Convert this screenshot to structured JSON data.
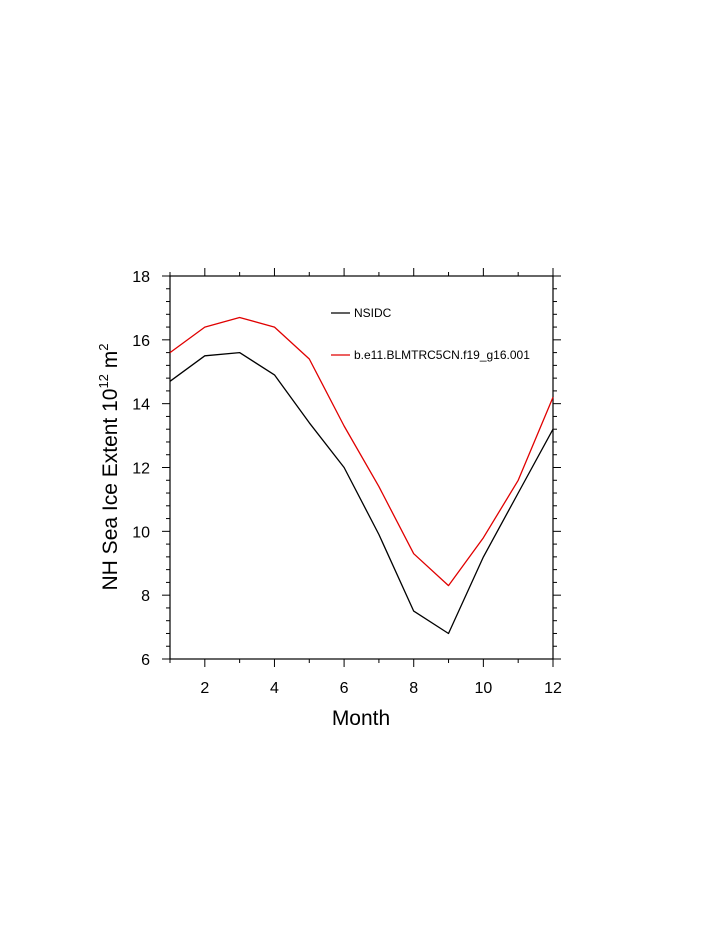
{
  "chart_data": {
    "type": "line",
    "xlabel": "Month",
    "ylabel_main": "NH Sea Ice Extent 10",
    "ylabel_exp1": "12",
    "ylabel_unit": " m",
    "ylabel_exp2": "2",
    "xlim": [
      1,
      12
    ],
    "ylim": [
      6,
      18
    ],
    "xticks": [
      2,
      4,
      6,
      8,
      10,
      12
    ],
    "yticks": [
      6,
      8,
      10,
      12,
      14,
      16,
      18
    ],
    "grid": false,
    "legend_position": "top-right",
    "x": [
      1,
      2,
      3,
      4,
      5,
      6,
      7,
      8,
      9,
      10,
      11,
      12
    ],
    "series": [
      {
        "name": "NSIDC",
        "color": "#000000",
        "values": [
          14.7,
          15.5,
          15.6,
          14.9,
          13.4,
          12.0,
          9.9,
          7.5,
          6.8,
          9.2,
          11.2,
          13.2
        ]
      },
      {
        "name": "b.e11.BLMTRC5CN.f19_g16.001",
        "color": "#e00000",
        "values": [
          15.6,
          16.4,
          16.7,
          16.4,
          15.4,
          13.3,
          11.4,
          9.3,
          8.3,
          9.8,
          11.6,
          14.2
        ]
      }
    ]
  }
}
